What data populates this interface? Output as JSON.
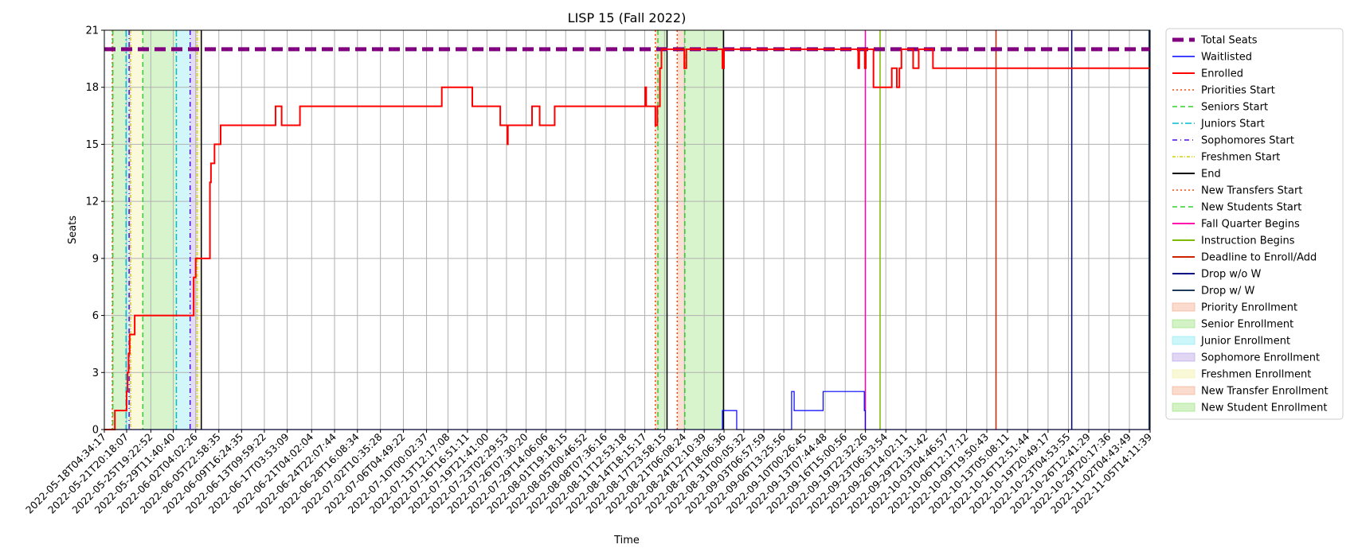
{
  "chart_data": {
    "type": "line",
    "title": "LISP 15 (Fall 2022)",
    "xlabel": "Time",
    "ylabel": "Seats",
    "ylim": [
      0,
      21
    ],
    "yticks": [
      0,
      3,
      6,
      9,
      12,
      15,
      18,
      21
    ],
    "xlim": [
      "2022-05-18T04:34:17",
      "2022-11-05T14:11:39"
    ],
    "xtick_labels": [
      "2022-05-18T04:34:17",
      "2022-05-21T20:18:07",
      "2022-05-25T19:22:52",
      "2022-05-29T11:40:40",
      "2022-06-02T04:02:26",
      "2022-06-05T22:58:35",
      "2022-06-09T16:24:35",
      "2022-06-13T09:59:22",
      "2022-06-17T03:53:09",
      "2022-06-21T04:02:04",
      "2022-06-24T22:07:44",
      "2022-06-28T16:08:34",
      "2022-07-02T10:35:28",
      "2022-07-06T04:49:22",
      "2022-07-10T00:02:37",
      "2022-07-13T12:17:08",
      "2022-07-16T16:51:11",
      "2022-07-19T21:41:00",
      "2022-07-23T02:29:53",
      "2022-07-26T07:30:20",
      "2022-07-29T14:06:06",
      "2022-08-01T19:18:15",
      "2022-08-05T00:46:52",
      "2022-08-08T07:36:16",
      "2022-08-11T12:53:18",
      "2022-08-14T18:15:17",
      "2022-08-17T23:58:15",
      "2022-08-21T06:08:24",
      "2022-08-24T12:10:39",
      "2022-08-27T18:06:36",
      "2022-08-31T00:05:32",
      "2022-09-03T06:57:59",
      "2022-09-06T13:25:56",
      "2022-09-10T00:26:45",
      "2022-09-13T07:44:48",
      "2022-09-16T15:00:56",
      "2022-09-19T22:32:26",
      "2022-09-23T06:33:54",
      "2022-09-26T14:02:11",
      "2022-09-29T21:31:42",
      "2022-10-03T04:46:57",
      "2022-10-06T12:17:12",
      "2022-10-09T19:50:43",
      "2022-10-13T05:08:11",
      "2022-10-16T12:51:44",
      "2022-10-19T20:49:17",
      "2022-10-23T04:53:55",
      "2022-10-26T12:41:29",
      "2022-10-29T20:17:36",
      "2022-11-02T04:43:49",
      "2022-11-05T14:11:39"
    ],
    "grid": true,
    "legend_position": "outside right",
    "series": [
      {
        "name": "Total Seats",
        "color": "#800080",
        "style": "dashed-thick",
        "points": [
          [
            "2022-05-18T04:34:17",
            20
          ],
          [
            "2022-11-05T14:11:39",
            20
          ]
        ]
      },
      {
        "name": "Waitlisted",
        "color": "#0000ff",
        "style": "solid-thin",
        "points": [
          [
            "2022-05-18T04:34:17",
            0
          ],
          [
            "2022-08-27T12:00:00",
            0
          ],
          [
            "2022-08-27T12:00:00",
            1
          ],
          [
            "2022-08-29T20:00:00",
            1
          ],
          [
            "2022-08-29T20:00:00",
            0
          ],
          [
            "2022-09-07T20:00:00",
            0
          ],
          [
            "2022-09-07T20:00:00",
            2
          ],
          [
            "2022-09-08T06:00:00",
            2
          ],
          [
            "2022-09-08T06:00:00",
            1
          ],
          [
            "2022-09-13T00:00:00",
            1
          ],
          [
            "2022-09-13T00:00:00",
            2
          ],
          [
            "2022-09-19T18:00:00",
            2
          ],
          [
            "2022-09-19T18:00:00",
            1
          ],
          [
            "2022-09-19T22:00:00",
            1
          ],
          [
            "2022-09-19T22:00:00",
            0
          ],
          [
            "2022-11-05T14:11:39",
            0
          ]
        ]
      },
      {
        "name": "Enrolled",
        "color": "#ff0000",
        "style": "solid",
        "points": [
          [
            "2022-05-18T04:34:17",
            0
          ],
          [
            "2022-05-19T22:00:00",
            0
          ],
          [
            "2022-05-19T22:00:00",
            1
          ],
          [
            "2022-05-21T20:00:00",
            1
          ],
          [
            "2022-05-21T20:00:00",
            2
          ],
          [
            "2022-05-22T00:00:00",
            2
          ],
          [
            "2022-05-22T00:00:00",
            3
          ],
          [
            "2022-05-22T04:00:00",
            3
          ],
          [
            "2022-05-22T04:00:00",
            4
          ],
          [
            "2022-05-22T08:00:00",
            4
          ],
          [
            "2022-05-22T08:00:00",
            5
          ],
          [
            "2022-05-23T04:00:00",
            5
          ],
          [
            "2022-05-23T04:00:00",
            6
          ],
          [
            "2022-06-01T20:00:00",
            6
          ],
          [
            "2022-06-01T20:00:00",
            8
          ],
          [
            "2022-06-02T04:00:00",
            8
          ],
          [
            "2022-06-02T04:00:00",
            9
          ],
          [
            "2022-06-03T12:00:00",
            9
          ],
          [
            "2022-06-04T12:00:00",
            9
          ],
          [
            "2022-06-04T12:00:00",
            13
          ],
          [
            "2022-06-04T16:00:00",
            13
          ],
          [
            "2022-06-04T16:00:00",
            14
          ],
          [
            "2022-06-05T06:00:00",
            14
          ],
          [
            "2022-06-05T06:00:00",
            15
          ],
          [
            "2022-06-06T06:00:00",
            15
          ],
          [
            "2022-06-06T06:00:00",
            16
          ],
          [
            "2022-06-15T06:00:00",
            16
          ],
          [
            "2022-06-15T06:00:00",
            17
          ],
          [
            "2022-06-16T06:00:00",
            17
          ],
          [
            "2022-06-16T06:00:00",
            16
          ],
          [
            "2022-06-19T06:00:00",
            16
          ],
          [
            "2022-06-19T06:00:00",
            17
          ],
          [
            "2022-07-12T12:00:00",
            17
          ],
          [
            "2022-07-12T12:00:00",
            18
          ],
          [
            "2022-07-17T12:00:00",
            18
          ],
          [
            "2022-07-17T12:00:00",
            17
          ],
          [
            "2022-07-22T02:00:00",
            17
          ],
          [
            "2022-07-22T02:00:00",
            16
          ],
          [
            "2022-07-23T06:00:00",
            16
          ],
          [
            "2022-07-23T06:00:00",
            15
          ],
          [
            "2022-07-23T08:00:00",
            15
          ],
          [
            "2022-07-23T08:00:00",
            16
          ],
          [
            "2022-07-27T07:00:00",
            16
          ],
          [
            "2022-07-27T07:00:00",
            17
          ],
          [
            "2022-07-28T13:00:00",
            17
          ],
          [
            "2022-07-28T13:00:00",
            16
          ],
          [
            "2022-07-31T00:00:00",
            16
          ],
          [
            "2022-07-31T00:00:00",
            17
          ],
          [
            "2022-08-14T20:00:00",
            17
          ],
          [
            "2022-08-14T20:00:00",
            18
          ],
          [
            "2022-08-15T00:00:00",
            18
          ],
          [
            "2022-08-15T00:00:00",
            17
          ],
          [
            "2022-08-16T12:00:00",
            17
          ],
          [
            "2022-08-16T12:00:00",
            16
          ],
          [
            "2022-08-16T20:00:00",
            16
          ],
          [
            "2022-08-16T20:00:00",
            17
          ],
          [
            "2022-08-17T06:00:00",
            17
          ],
          [
            "2022-08-17T06:00:00",
            19
          ],
          [
            "2022-08-17T12:00:00",
            19
          ],
          [
            "2022-08-17T12:00:00",
            20
          ],
          [
            "2022-08-21T06:00:00",
            20
          ],
          [
            "2022-08-21T06:00:00",
            19
          ],
          [
            "2022-08-21T14:00:00",
            19
          ],
          [
            "2022-08-21T14:00:00",
            20
          ],
          [
            "2022-08-27T12:00:00",
            20
          ],
          [
            "2022-08-27T12:00:00",
            19
          ],
          [
            "2022-08-27T18:00:00",
            19
          ],
          [
            "2022-08-27T18:00:00",
            20
          ],
          [
            "2022-09-18T18:00:00",
            20
          ],
          [
            "2022-09-18T18:00:00",
            19
          ],
          [
            "2022-09-18T22:00:00",
            19
          ],
          [
            "2022-09-18T22:00:00",
            20
          ],
          [
            "2022-09-19T20:00:00",
            20
          ],
          [
            "2022-09-19T20:00:00",
            19
          ],
          [
            "2022-09-20T00:00:00",
            19
          ],
          [
            "2022-09-20T00:00:00",
            20
          ],
          [
            "2022-09-21T06:00:00",
            20
          ],
          [
            "2022-09-21T06:00:00",
            18
          ],
          [
            "2022-09-24T06:00:00",
            18
          ],
          [
            "2022-09-24T06:00:00",
            19
          ],
          [
            "2022-09-25T02:00:00",
            19
          ],
          [
            "2022-09-25T02:00:00",
            18
          ],
          [
            "2022-09-25T12:00:00",
            18
          ],
          [
            "2022-09-25T12:00:00",
            19
          ],
          [
            "2022-09-25T20:00:00",
            19
          ],
          [
            "2022-09-25T20:00:00",
            20
          ],
          [
            "2022-09-27T18:00:00",
            20
          ],
          [
            "2022-09-27T18:00:00",
            19
          ],
          [
            "2022-09-28T16:00:00",
            19
          ],
          [
            "2022-09-28T16:00:00",
            20
          ],
          [
            "2022-10-01T00:00:00",
            20
          ],
          [
            "2022-10-01T00:00:00",
            19
          ],
          [
            "2022-11-05T14:11:39",
            19
          ]
        ]
      }
    ],
    "event_lines": [
      {
        "name": "Priorities Start",
        "color": "#ff4500",
        "style": "dotted",
        "dates": [
          "2022-05-19T12:00:00",
          "2022-08-16T12:00:00"
        ]
      },
      {
        "name": "Seniors Start",
        "color": "#32cd32",
        "style": "dashed",
        "dates": [
          "2022-05-19T14:00:00",
          "2022-05-24T12:00:00",
          "2022-08-16T22:00:00"
        ]
      },
      {
        "name": "Juniors Start",
        "color": "#00bcd4",
        "style": "dashdot",
        "dates": [
          "2022-05-21T18:00:00",
          "2022-05-30T00:00:00"
        ]
      },
      {
        "name": "Sophomores Start",
        "color": "#4b0bf0",
        "style": "dashdot-sparse",
        "dates": [
          "2022-05-22T06:00:00",
          "2022-06-01T06:00:00"
        ]
      },
      {
        "name": "Freshmen Start",
        "color": "#d4d400",
        "style": "dashdot-thin",
        "dates": [
          "2022-05-22T12:00:00",
          "2022-06-02T10:00:00"
        ]
      },
      {
        "name": "End",
        "color": "#000000",
        "style": "solid",
        "dates": [
          "2022-06-03T02:00:00",
          "2022-08-18T10:00:00",
          "2022-08-27T16:00:00",
          "2022-11-05T12:00:00"
        ]
      },
      {
        "name": "New Transfers Start",
        "color": "#ff4500",
        "style": "dotted",
        "dates": [
          "2022-08-20T02:00:00"
        ]
      },
      {
        "name": "New Students Start",
        "color": "#32cd32",
        "style": "dashed",
        "dates": [
          "2022-08-21T08:00:00"
        ]
      },
      {
        "name": "Fall Quarter Begins",
        "color": "#ff00aa",
        "style": "solid",
        "dates": [
          "2022-09-19T22:00:00"
        ]
      },
      {
        "name": "Instruction Begins",
        "color": "#7fb800",
        "style": "solid",
        "dates": [
          "2022-09-22T08:00:00"
        ]
      },
      {
        "name": "Deadline to Enroll/Add",
        "color": "#cc2200",
        "style": "solid",
        "dates": [
          "2022-10-11T08:00:00"
        ]
      },
      {
        "name": "Drop w/o W",
        "color": "#000080",
        "style": "solid",
        "dates": [
          "2022-10-23T18:00:00"
        ]
      },
      {
        "name": "Drop w/ W",
        "color": "#1f3b5c",
        "style": "solid",
        "dates": [
          "2022-11-05T10:00:00"
        ]
      }
    ],
    "spans": [
      {
        "name": "Priority Enrollment",
        "color": "#f4a582",
        "ranges": [
          [
            "2022-05-19T12:00:00",
            "2022-05-19T14:00:00"
          ],
          [
            "2022-08-16T12:00:00",
            "2022-08-16T22:00:00"
          ]
        ]
      },
      {
        "name": "Senior Enrollment",
        "color": "#90e070",
        "ranges": [
          [
            "2022-05-19T14:00:00",
            "2022-05-21T18:00:00"
          ],
          [
            "2022-05-24T12:00:00",
            "2022-05-30T00:00:00"
          ],
          [
            "2022-08-16T22:00:00",
            "2022-08-18T10:00:00"
          ]
        ]
      },
      {
        "name": "Junior Enrollment",
        "color": "#7fe8f0",
        "ranges": [
          [
            "2022-05-21T18:00:00",
            "2022-05-22T06:00:00"
          ],
          [
            "2022-05-30T00:00:00",
            "2022-06-01T06:00:00"
          ]
        ]
      },
      {
        "name": "Sophomore Enrollment",
        "color": "#b39ae6",
        "ranges": [
          [
            "2022-05-22T06:00:00",
            "2022-05-22T12:00:00"
          ],
          [
            "2022-06-01T06:00:00",
            "2022-06-02T10:00:00"
          ]
        ]
      },
      {
        "name": "Freshmen Enrollment",
        "color": "#f2ef9c",
        "ranges": [
          [
            "2022-05-22T12:00:00",
            "2022-05-24T12:00:00"
          ],
          [
            "2022-06-02T10:00:00",
            "2022-06-03T02:00:00"
          ]
        ]
      },
      {
        "name": "New Transfer Enrollment",
        "color": "#f4a582",
        "ranges": [
          [
            "2022-08-20T02:00:00",
            "2022-08-21T08:00:00"
          ]
        ]
      },
      {
        "name": "New Student Enrollment",
        "color": "#90e070",
        "ranges": [
          [
            "2022-08-21T08:00:00",
            "2022-08-27T16:00:00"
          ]
        ]
      }
    ],
    "legend": [
      {
        "label": "Total Seats",
        "kind": "line",
        "color": "#800080",
        "style": "dashed-thick"
      },
      {
        "label": "Waitlisted",
        "kind": "line",
        "color": "#0000ff",
        "style": "solid-thin"
      },
      {
        "label": "Enrolled",
        "kind": "line",
        "color": "#ff0000",
        "style": "solid"
      },
      {
        "label": "Priorities Start",
        "kind": "line",
        "color": "#ff4500",
        "style": "dotted"
      },
      {
        "label": "Seniors Start",
        "kind": "line",
        "color": "#32cd32",
        "style": "dashed"
      },
      {
        "label": "Juniors Start",
        "kind": "line",
        "color": "#00bcd4",
        "style": "dashdot"
      },
      {
        "label": "Sophomores Start",
        "kind": "line",
        "color": "#4b0bf0",
        "style": "dashdot-sparse"
      },
      {
        "label": "Freshmen Start",
        "kind": "line",
        "color": "#d4d400",
        "style": "dashdot-thin"
      },
      {
        "label": "End",
        "kind": "line",
        "color": "#000000",
        "style": "solid"
      },
      {
        "label": "New Transfers Start",
        "kind": "line",
        "color": "#ff4500",
        "style": "dotted"
      },
      {
        "label": "New Students Start",
        "kind": "line",
        "color": "#32cd32",
        "style": "dashed"
      },
      {
        "label": "Fall Quarter Begins",
        "kind": "line",
        "color": "#ff00aa",
        "style": "solid"
      },
      {
        "label": "Instruction Begins",
        "kind": "line",
        "color": "#7fb800",
        "style": "solid"
      },
      {
        "label": "Deadline to Enroll/Add",
        "kind": "line",
        "color": "#cc2200",
        "style": "solid"
      },
      {
        "label": "Drop w/o W",
        "kind": "line",
        "color": "#000080",
        "style": "solid"
      },
      {
        "label": "Drop w/ W",
        "kind": "line",
        "color": "#1f3b5c",
        "style": "solid"
      },
      {
        "label": "Priority Enrollment",
        "kind": "patch",
        "color": "#f4a582"
      },
      {
        "label": "Senior Enrollment",
        "kind": "patch",
        "color": "#90e070"
      },
      {
        "label": "Junior Enrollment",
        "kind": "patch",
        "color": "#7fe8f0"
      },
      {
        "label": "Sophomore Enrollment",
        "kind": "patch",
        "color": "#b39ae6"
      },
      {
        "label": "Freshmen Enrollment",
        "kind": "patch",
        "color": "#f2ef9c"
      },
      {
        "label": "New Transfer Enrollment",
        "kind": "patch",
        "color": "#f4a582"
      },
      {
        "label": "New Student Enrollment",
        "kind": "patch",
        "color": "#90e070"
      }
    ]
  }
}
